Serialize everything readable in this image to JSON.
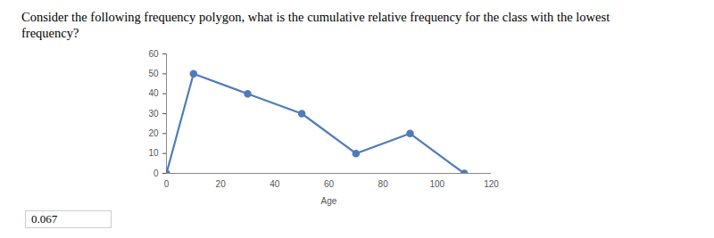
{
  "chart_data": {
    "type": "line",
    "title": "Consider the following frequency polygon, what is the cumulative relative frequency for the class with the lowest frequency?",
    "x_label": "Age",
    "x": [
      0,
      10,
      30,
      50,
      70,
      90,
      110
    ],
    "values": [
      0,
      50,
      40,
      30,
      10,
      20,
      0
    ],
    "color": "#4f7bbd",
    "marker": "circle",
    "line_style": "solid",
    "xlim": [
      0,
      120
    ],
    "xticks": [
      0,
      20,
      40,
      60,
      80,
      100,
      120
    ],
    "ylim": [
      0,
      60
    ],
    "yticks": [
      0,
      10,
      20,
      30,
      40,
      50,
      60
    ],
    "grid": false,
    "annotations": [
      "0.067"
    ]
  }
}
